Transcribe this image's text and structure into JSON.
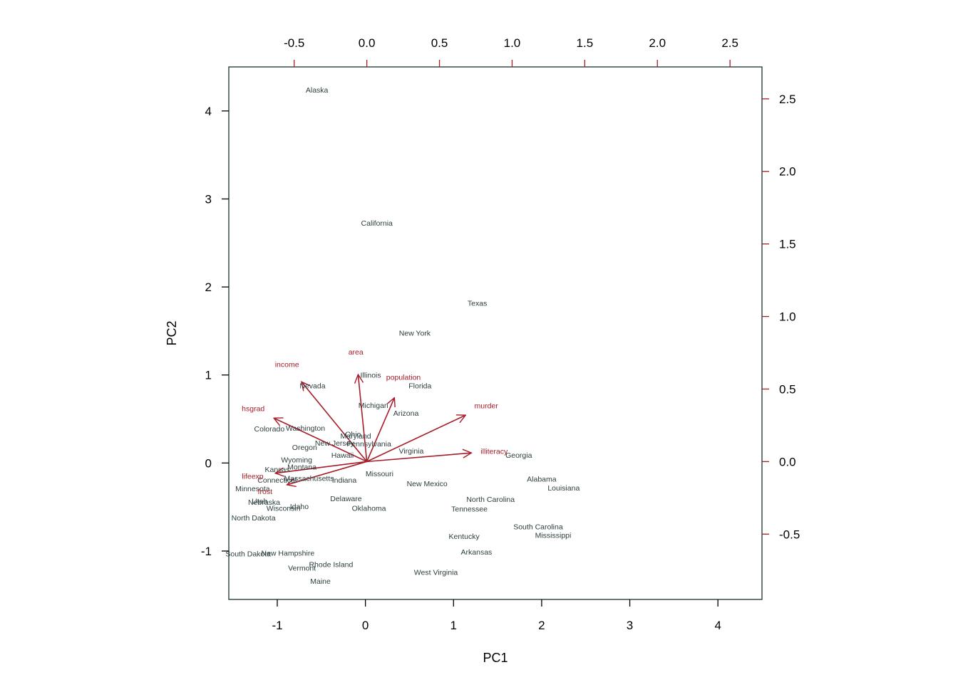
{
  "chart_data": {
    "type": "scatter",
    "subtype": "biplot",
    "title": "",
    "xlabel": "PC1",
    "ylabel": "PC2",
    "grid": false,
    "xlim": [
      -1.55,
      4.5
    ],
    "ylim": [
      -1.55,
      4.5
    ],
    "xticks": [
      -1,
      0,
      1,
      2,
      3,
      4
    ],
    "yticks": [
      -1,
      0,
      1,
      2,
      3,
      4
    ],
    "xtick_labels": [
      "-1",
      "0",
      "1",
      "2",
      "3",
      "4"
    ],
    "ytick_labels": [
      "-1",
      "0",
      "1",
      "2",
      "3",
      "4"
    ],
    "secondary_axes": {
      "xlim": [
        -0.95,
        2.72
      ],
      "ylim": [
        -0.95,
        2.72
      ],
      "xticks": [
        -0.5,
        0.0,
        0.5,
        1.0,
        1.5,
        2.0,
        2.5
      ],
      "yticks": [
        -0.5,
        0.0,
        0.5,
        1.0,
        1.5,
        2.0,
        2.5
      ],
      "xtick_labels": [
        "-0.5",
        "0.0",
        "0.5",
        "1.0",
        "1.5",
        "2.0",
        "2.5"
      ],
      "ytick_labels": [
        "-0.5",
        "0.0",
        "0.5",
        "1.0",
        "1.5",
        "2.0",
        "2.5"
      ]
    },
    "colors": {
      "observations": "#2c3e3e",
      "variables": "#a61c28",
      "frame": "#2c3e3e",
      "primary_axis": "#000000",
      "secondary_axis": "#a61c28"
    },
    "observations": [
      {
        "name": "Alaska",
        "x": -0.55,
        "y": 4.24
      },
      {
        "name": "California",
        "x": 0.13,
        "y": 2.73
      },
      {
        "name": "Texas",
        "x": 1.27,
        "y": 1.82
      },
      {
        "name": "New York",
        "x": 0.56,
        "y": 1.48
      },
      {
        "name": "Illinois",
        "x": 0.06,
        "y": 1.0
      },
      {
        "name": "Nevada",
        "x": -0.6,
        "y": 0.88
      },
      {
        "name": "Florida",
        "x": 0.62,
        "y": 0.88
      },
      {
        "name": "Michigan",
        "x": 0.09,
        "y": 0.66
      },
      {
        "name": "Arizona",
        "x": 0.46,
        "y": 0.57
      },
      {
        "name": "Colorado",
        "x": -1.09,
        "y": 0.39
      },
      {
        "name": "Washington",
        "x": -0.68,
        "y": 0.4
      },
      {
        "name": "Ohio",
        "x": -0.14,
        "y": 0.33
      },
      {
        "name": "Maryland",
        "x": -0.11,
        "y": 0.31
      },
      {
        "name": "New Jersey",
        "x": -0.35,
        "y": 0.23
      },
      {
        "name": "Pennsylvania",
        "x": 0.04,
        "y": 0.22
      },
      {
        "name": "Oregon",
        "x": -0.69,
        "y": 0.18
      },
      {
        "name": "Hawaii",
        "x": -0.26,
        "y": 0.09
      },
      {
        "name": "Virginia",
        "x": 0.52,
        "y": 0.14
      },
      {
        "name": "Georgia",
        "x": 1.74,
        "y": 0.09
      },
      {
        "name": "Wyoming",
        "x": -0.78,
        "y": 0.04
      },
      {
        "name": "Montana",
        "x": -0.72,
        "y": -0.04
      },
      {
        "name": "Kansas",
        "x": -1.0,
        "y": -0.07
      },
      {
        "name": "Missouri",
        "x": 0.16,
        "y": -0.12
      },
      {
        "name": "Massachusetts",
        "x": -0.64,
        "y": -0.17
      },
      {
        "name": "Connecticut",
        "x": -1.0,
        "y": -0.19
      },
      {
        "name": "Indiana",
        "x": -0.24,
        "y": -0.19
      },
      {
        "name": "Alabama",
        "x": 2.0,
        "y": -0.18
      },
      {
        "name": "New Mexico",
        "x": 0.7,
        "y": -0.23
      },
      {
        "name": "Louisiana",
        "x": 2.25,
        "y": -0.28
      },
      {
        "name": "Minnesota",
        "x": -1.28,
        "y": -0.29
      },
      {
        "name": "North Carolina",
        "x": 1.42,
        "y": -0.41
      },
      {
        "name": "Delaware",
        "x": -0.22,
        "y": -0.4
      },
      {
        "name": "Utah",
        "x": -1.2,
        "y": -0.43
      },
      {
        "name": "Nebraska",
        "x": -1.15,
        "y": -0.44
      },
      {
        "name": "Idaho",
        "x": -0.75,
        "y": -0.49
      },
      {
        "name": "Wisconsin",
        "x": -0.93,
        "y": -0.51
      },
      {
        "name": "Oklahoma",
        "x": 0.04,
        "y": -0.51
      },
      {
        "name": "Tennessee",
        "x": 1.18,
        "y": -0.52
      },
      {
        "name": "North Dakota",
        "x": -1.27,
        "y": -0.62
      },
      {
        "name": "South Carolina",
        "x": 1.96,
        "y": -0.72
      },
      {
        "name": "Mississippi",
        "x": 2.13,
        "y": -0.82
      },
      {
        "name": "Kentucky",
        "x": 1.12,
        "y": -0.83
      },
      {
        "name": "Arkansas",
        "x": 1.26,
        "y": -1.01
      },
      {
        "name": "South Dakota",
        "x": -1.33,
        "y": -1.03
      },
      {
        "name": "New Hampshire",
        "x": -0.88,
        "y": -1.02
      },
      {
        "name": "Rhode Island",
        "x": -0.39,
        "y": -1.15
      },
      {
        "name": "Vermont",
        "x": -0.72,
        "y": -1.19
      },
      {
        "name": "West Virginia",
        "x": 0.8,
        "y": -1.24
      },
      {
        "name": "Maine",
        "x": -0.51,
        "y": -1.34
      }
    ],
    "loadings": [
      {
        "name": "population",
        "x": 0.19,
        "y": 0.44
      },
      {
        "name": "income",
        "x": -0.45,
        "y": 0.55
      },
      {
        "name": "illiteracy",
        "x": 0.72,
        "y": 0.06
      },
      {
        "name": "lifeexp",
        "x": -0.63,
        "y": -0.08
      },
      {
        "name": "murder",
        "x": 0.68,
        "y": 0.32
      },
      {
        "name": "hsgrad",
        "x": -0.64,
        "y": 0.3
      },
      {
        "name": "frost",
        "x": -0.55,
        "y": -0.16
      },
      {
        "name": "area",
        "x": -0.06,
        "y": 0.6
      }
    ]
  }
}
